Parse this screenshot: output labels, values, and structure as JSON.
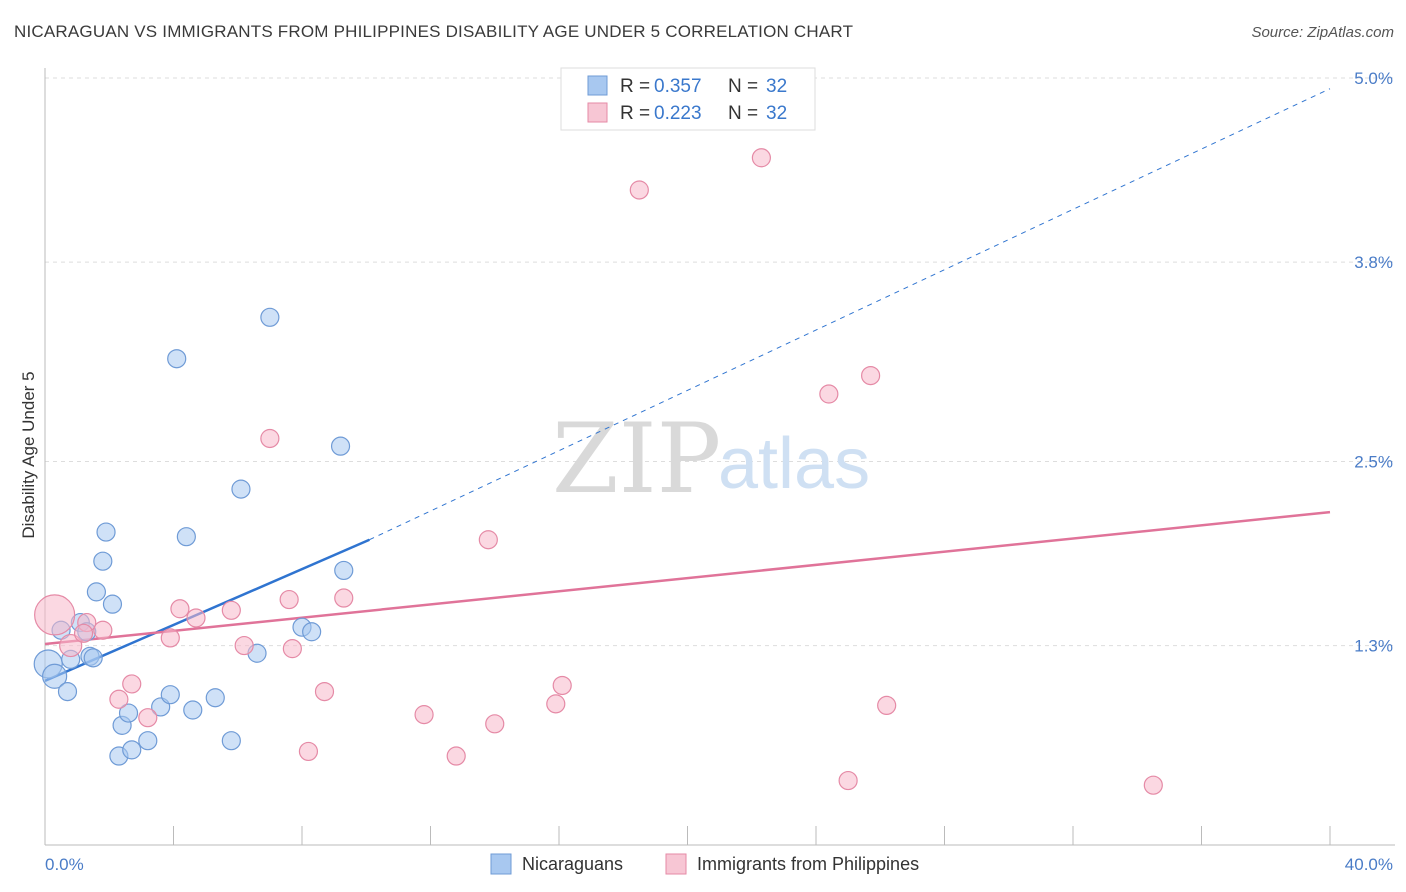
{
  "title": "NICARAGUAN VS IMMIGRANTS FROM PHILIPPINES DISABILITY AGE UNDER 5 CORRELATION CHART",
  "source": "Source: ZipAtlas.com",
  "watermark": {
    "zip": "ZIP",
    "atlas": "atlas"
  },
  "legend": {
    "r_label": "R = ",
    "n_label": "N = ",
    "rows": [
      {
        "r": "0.357",
        "n": "32",
        "color": "#a8c8f0"
      },
      {
        "r": "0.223",
        "n": "32",
        "color": "#f7b8cb"
      }
    ]
  },
  "chart_data": {
    "type": "scatter",
    "title": "NICARAGUAN VS IMMIGRANTS FROM PHILIPPINES DISABILITY AGE UNDER 5 CORRELATION CHART",
    "xlabel": "",
    "ylabel": "Disability Age Under 5",
    "xlim": [
      0,
      40
    ],
    "ylim": [
      0,
      5.0
    ],
    "x_tick_labels": [
      "0.0%",
      "40.0%"
    ],
    "y_ticks": [
      1.3,
      2.5,
      3.8,
      5.0
    ],
    "y_tick_labels": [
      "1.3%",
      "2.5%",
      "3.8%",
      "5.0%"
    ],
    "grid": true,
    "legend_position": "top-center",
    "series": [
      {
        "name": "Nicaraguans",
        "color": "#a8c8f0",
        "stroke": "#6f9bd6",
        "points": [
          [
            0.1,
            1.18,
            14
          ],
          [
            0.3,
            1.1,
            12
          ],
          [
            0.7,
            1.0,
            9
          ],
          [
            0.5,
            1.4,
            9
          ],
          [
            1.1,
            1.45,
            9
          ],
          [
            1.4,
            1.23,
            9
          ],
          [
            1.5,
            1.22,
            9
          ],
          [
            1.6,
            1.65,
            9
          ],
          [
            1.8,
            1.85,
            9
          ],
          [
            1.9,
            2.04,
            9
          ],
          [
            2.1,
            1.57,
            9
          ],
          [
            2.3,
            0.58,
            9
          ],
          [
            2.4,
            0.78,
            9
          ],
          [
            2.6,
            0.86,
            9
          ],
          [
            2.7,
            0.62,
            9
          ],
          [
            3.2,
            0.68,
            9
          ],
          [
            3.6,
            0.9,
            9
          ],
          [
            3.9,
            0.98,
            9
          ],
          [
            4.1,
            3.17,
            9
          ],
          [
            4.4,
            2.01,
            9
          ],
          [
            4.6,
            0.88,
            9
          ],
          [
            5.3,
            0.96,
            9
          ],
          [
            5.8,
            0.68,
            9
          ],
          [
            6.1,
            2.32,
            9
          ],
          [
            6.6,
            1.25,
            9
          ],
          [
            7.0,
            3.44,
            9
          ],
          [
            8.0,
            1.42,
            9
          ],
          [
            8.3,
            1.39,
            9
          ],
          [
            9.2,
            2.6,
            9
          ],
          [
            9.3,
            1.79,
            9
          ],
          [
            0.8,
            1.21,
            9
          ],
          [
            1.3,
            1.39,
            9
          ]
        ]
      },
      {
        "name": "Immigrants from Philippines",
        "color": "#f7b8cb",
        "stroke": "#e58aa6",
        "points": [
          [
            0.3,
            1.5,
            20
          ],
          [
            0.8,
            1.3,
            11
          ],
          [
            1.3,
            1.45,
            9
          ],
          [
            1.8,
            1.4,
            9
          ],
          [
            2.3,
            0.95,
            9
          ],
          [
            2.7,
            1.05,
            9
          ],
          [
            3.2,
            0.83,
            9
          ],
          [
            3.9,
            1.35,
            9
          ],
          [
            4.2,
            1.54,
            9
          ],
          [
            4.7,
            1.48,
            9
          ],
          [
            5.8,
            1.53,
            9
          ],
          [
            6.2,
            1.3,
            9
          ],
          [
            7.0,
            2.65,
            9
          ],
          [
            7.6,
            1.6,
            9
          ],
          [
            7.7,
            1.28,
            9
          ],
          [
            8.2,
            0.61,
            9
          ],
          [
            8.7,
            1.0,
            9
          ],
          [
            9.3,
            1.61,
            9
          ],
          [
            11.8,
            0.85,
            9
          ],
          [
            12.8,
            0.58,
            9
          ],
          [
            13.8,
            1.99,
            9
          ],
          [
            14.0,
            0.79,
            9
          ],
          [
            15.9,
            0.92,
            9
          ],
          [
            16.1,
            1.04,
            9
          ],
          [
            18.5,
            4.27,
            9
          ],
          [
            22.3,
            4.48,
            9
          ],
          [
            24.4,
            2.94,
            9
          ],
          [
            25.0,
            0.42,
            9
          ],
          [
            25.7,
            3.06,
            9
          ],
          [
            26.2,
            0.91,
            9
          ],
          [
            34.5,
            0.39,
            9
          ],
          [
            1.2,
            1.38,
            9
          ]
        ]
      }
    ],
    "trendlines": [
      {
        "series": "Nicaraguans",
        "color": "#2f74d0",
        "x_start": 0.0,
        "y_start": 1.07,
        "x_solid_end": 10.1,
        "y_solid_end": 1.99,
        "x_end": 40.0,
        "y_end": 4.93
      },
      {
        "series": "Immigrants from Philippines",
        "color": "#e07399",
        "x_start": 0.0,
        "y_start": 1.31,
        "x_end": 40.0,
        "y_end": 2.17
      }
    ]
  }
}
